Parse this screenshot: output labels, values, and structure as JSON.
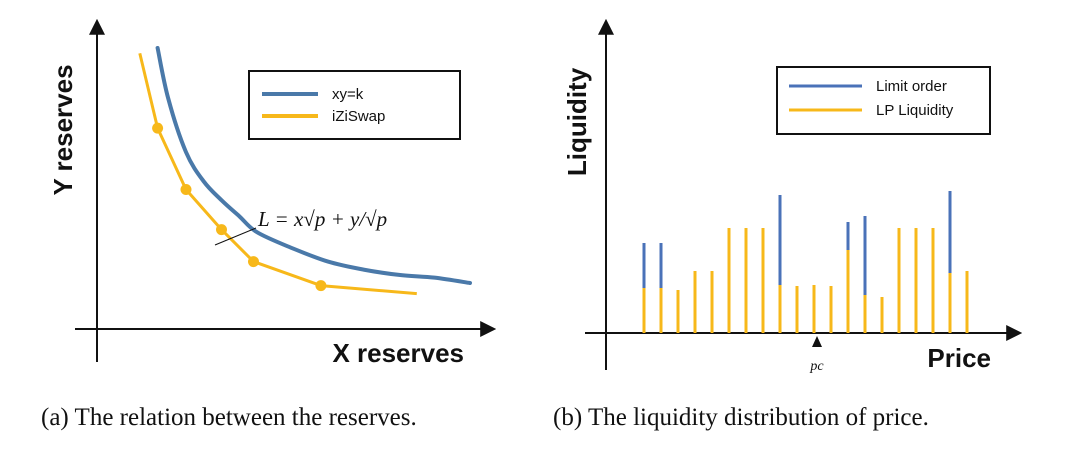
{
  "colors": {
    "blue": "#4a72b8",
    "yellow": "#f7b81a",
    "curve_blue": "#4a79a9",
    "axis": "#111111"
  },
  "chart_data": [
    {
      "type": "line",
      "xlabel": "X reserves",
      "ylabel": "Y reserves",
      "caption": "(a) The relation between the reserves.",
      "annotation": "L = x√p + y/√p",
      "legend_position": "top-right",
      "x_range": [
        0,
        100
      ],
      "y_range": [
        0,
        100
      ],
      "series": [
        {
          "name": "xy=k",
          "color": "#4a79a9",
          "x": [
            12,
            15,
            20,
            25,
            30,
            35,
            40,
            50,
            60,
            70,
            80,
            90,
            100
          ],
          "y": [
            100,
            81,
            61,
            50,
            43,
            37,
            31,
            25,
            20,
            17,
            15,
            14,
            12
          ]
        },
        {
          "name": "iZiSwap",
          "color": "#f7b81a",
          "x": [
            7,
            12,
            20,
            30,
            39,
            58,
            85
          ],
          "y": [
            98,
            70,
            47,
            32,
            20,
            11,
            8
          ],
          "markers_x": [
            12,
            20,
            30,
            39,
            58
          ],
          "markers_y": [
            70,
            47,
            32,
            20,
            11
          ]
        }
      ]
    },
    {
      "type": "bar",
      "xlabel": "Price",
      "ylabel": "Liquidity",
      "caption": "(b) The liquidity distribution of price.",
      "tick_label": "pc",
      "legend_position": "top-right",
      "series_names": [
        "Limit order",
        "LP Liquidity"
      ],
      "lp_liquidity": [
        45,
        45,
        43,
        62,
        62,
        105,
        105,
        105,
        48,
        47,
        48,
        47,
        83,
        38,
        36,
        105,
        105,
        105,
        60,
        62
      ],
      "limit_order": [
        45,
        45,
        0,
        0,
        0,
        0,
        0,
        0,
        90,
        0,
        0,
        0,
        28,
        79,
        0,
        0,
        0,
        0,
        82,
        0
      ],
      "pc_index": 10
    }
  ]
}
